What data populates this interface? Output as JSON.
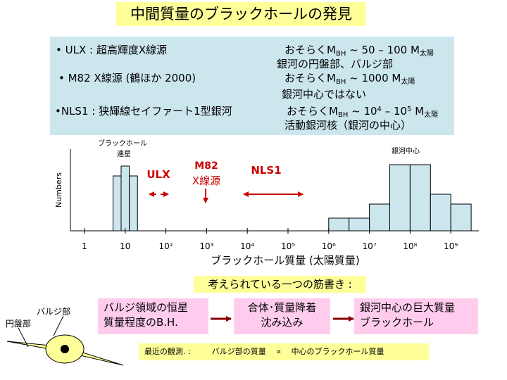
{
  "title": "中間質量のブラックホールの発見",
  "info": {
    "ulx_label": "• ULX : 超高輝度X線源",
    "ulx_mass_pre": "おそらくM",
    "ulx_mass_sub": "BH",
    "ulx_mass_mid": " ~ 50 – 100 M",
    "ulx_mass_sun": "太陽",
    "ulx_note": "銀河の円盤部、バルジ部",
    "m82_label": "• M82 X線源 (鶴ほか 2000)",
    "m82_mass_pre": "おそらくM",
    "m82_mass_sub": "BH",
    "m82_mass_mid": " ~ 1000 M",
    "m82_mass_sun": "太陽",
    "m82_note": "銀河中心ではない",
    "nls1_label": "•NLS1 : 狭輝線セイファート1型銀河",
    "nls1_mass_pre": "おそらくM",
    "nls1_mass_sub": "BH",
    "nls1_mass_mid": " ~ 10",
    "nls1_exp1": "4",
    "nls1_mass_mid2": " – 10",
    "nls1_exp2": "5",
    "nls1_mass_mid3": " M",
    "nls1_mass_sun": "太陽",
    "nls1_note": "活動銀河核（銀河の中心）"
  },
  "chart_data": {
    "type": "bar",
    "xlabel": "ブラックホール質量 (太陽質量)",
    "ylabel": "Numbers",
    "x_scale": "log",
    "x_ticks": [
      "1",
      "10",
      "10²",
      "10³",
      "10⁴",
      "10⁵",
      "10⁶",
      "10⁷",
      "10⁸",
      "10⁹"
    ],
    "x_tick_values": [
      1,
      10,
      100,
      1000,
      10000,
      100000,
      1000000,
      10000000,
      100000000,
      1000000000
    ],
    "series": [
      {
        "name": "ブラックホール連星",
        "bins": [
          {
            "from_log": 0.7,
            "to_log": 0.9,
            "height": 0.78
          },
          {
            "from_log": 0.9,
            "to_log": 1.1,
            "height": 0.92
          },
          {
            "from_log": 1.1,
            "to_log": 1.3,
            "height": 0.78
          }
        ]
      },
      {
        "name": "銀河中心",
        "bins": [
          {
            "from_log": 6.0,
            "to_log": 6.5,
            "height": 0.18
          },
          {
            "from_log": 6.5,
            "to_log": 7.0,
            "height": 0.18
          },
          {
            "from_log": 7.0,
            "to_log": 7.5,
            "height": 0.38
          },
          {
            "from_log": 7.5,
            "to_log": 8.0,
            "height": 0.94
          },
          {
            "from_log": 8.0,
            "to_log": 8.5,
            "height": 0.94
          },
          {
            "from_log": 8.5,
            "to_log": 9.0,
            "height": 0.52
          },
          {
            "from_log": 9.0,
            "to_log": 9.5,
            "height": 0.38
          }
        ]
      }
    ],
    "annotations": {
      "binary_label_1": "ブラックホール",
      "binary_label_2": "連星",
      "galaxy_center_label": "銀河中心",
      "ulx": "ULX",
      "m82_1": "M82",
      "m82_2": "X線源",
      "nls1": "NLS1"
    },
    "colors": {
      "bar_fill": "#cce6ee",
      "annotation": "#cc0000"
    }
  },
  "scenario": {
    "heading": "考えられている一つの筋書き :",
    "step1_line1": "バルジ領域の恒星",
    "step1_line2": "質量程度のB.H.",
    "step2_line1": "合体･質量降着",
    "step2_line2": "沈み込み",
    "step3_line1": "銀河中心の巨大質量",
    "step3_line2": "ブラックホール"
  },
  "galaxy": {
    "bulge_label": "バルジ部",
    "disk_label": "円盤部"
  },
  "observation": {
    "text_1": "最近の観測. :",
    "text_2": "バルジ部の質量",
    "symbol": "∝",
    "text_3": "中心のブラックホール質量"
  }
}
